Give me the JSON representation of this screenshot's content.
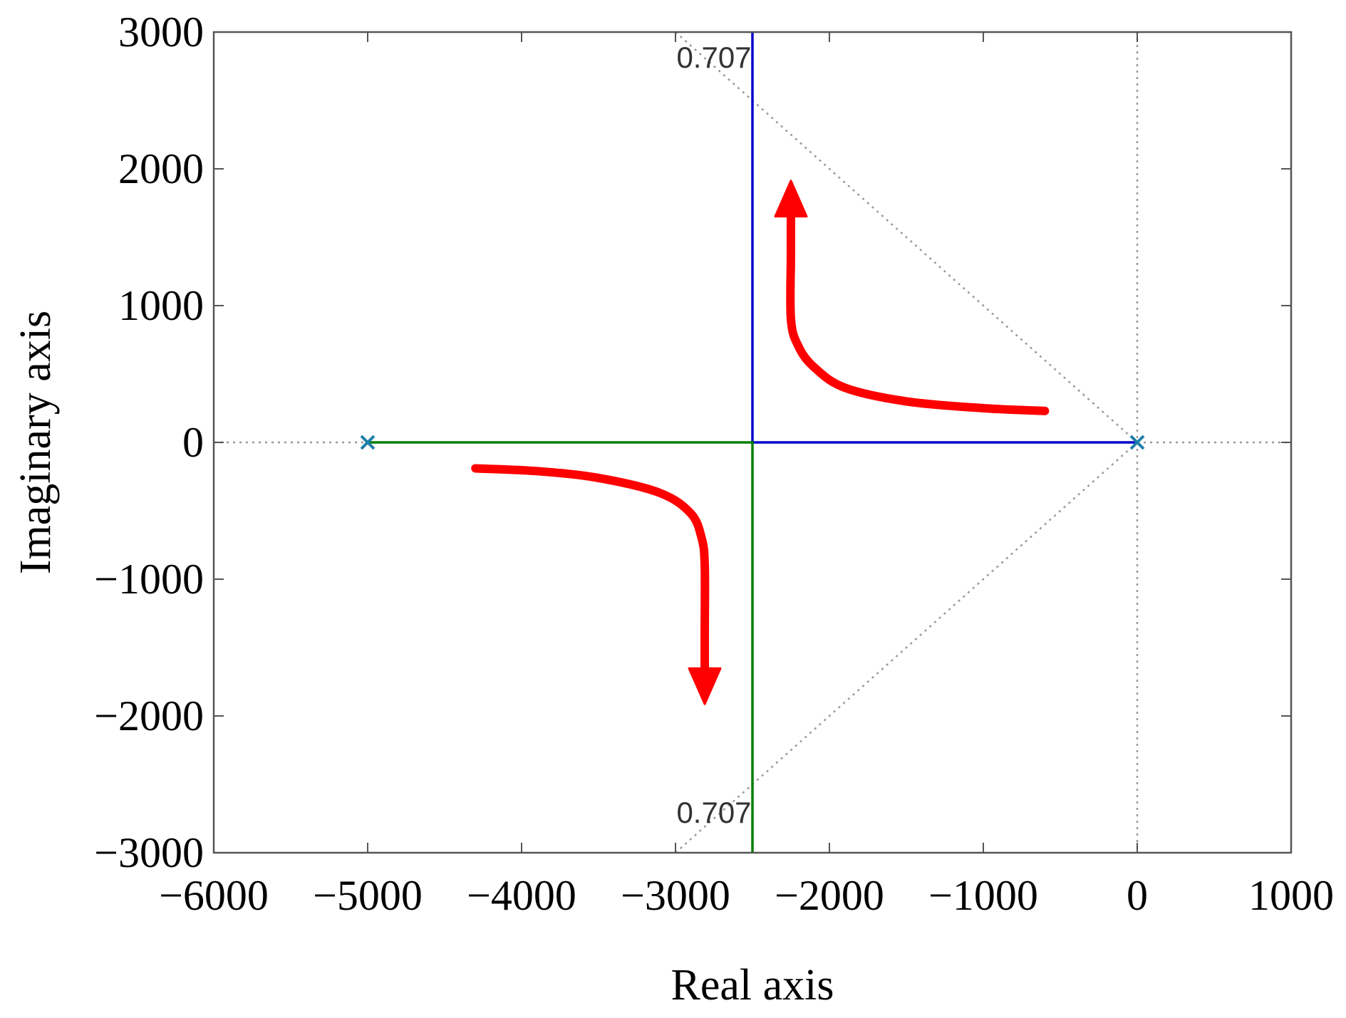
{
  "chart_data": {
    "type": "line",
    "xlabel": "Real axis",
    "ylabel": "Imaginary axis",
    "xlim": [
      -6000,
      1000
    ],
    "ylim": [
      -3000,
      3000
    ],
    "xticks": [
      -6000,
      -5000,
      -4000,
      -3000,
      -2000,
      -1000,
      0,
      1000
    ],
    "yticks": [
      -3000,
      -2000,
      -1000,
      0,
      1000,
      2000,
      3000
    ],
    "xtick_labels": [
      "−6000",
      "−5000",
      "−4000",
      "−3000",
      "−2000",
      "−1000",
      "0",
      "1000"
    ],
    "ytick_labels": [
      "−3000",
      "−2000",
      "−1000",
      "0",
      "1000",
      "2000",
      "3000"
    ],
    "grid": false,
    "poles": [
      {
        "x": -5000,
        "y": 0
      },
      {
        "x": 0,
        "y": 0
      }
    ],
    "series": [
      {
        "color": "#0000cc",
        "x": [
          0,
          -2500,
          -2500
        ],
        "y": [
          0,
          0,
          3000
        ]
      },
      {
        "color": "#008000",
        "x": [
          -5000,
          -2500,
          -2500
        ],
        "y": [
          0,
          0,
          -3000
        ]
      }
    ],
    "annotations": [
      {
        "text": "0.707",
        "x": -2750,
        "y": 2740
      },
      {
        "text": "0.707",
        "x": -2750,
        "y": -2780
      }
    ],
    "damping_lines": [
      {
        "x": [
          0,
          -3000
        ],
        "y": [
          0,
          3000
        ]
      },
      {
        "x": [
          0,
          -3000
        ],
        "y": [
          0,
          -3000
        ]
      }
    ],
    "arrows": [
      {
        "color": "#ff0000",
        "x": [
          -600,
          -1000,
          -1500,
          -1900,
          -2100,
          -2200,
          -2250,
          -2250,
          -2250
        ],
        "y": [
          230,
          250,
          300,
          400,
          550,
          700,
          900,
          1400,
          1850
        ]
      },
      {
        "color": "#ff0000",
        "x": [
          -4300,
          -3900,
          -3500,
          -3100,
          -2900,
          -2830,
          -2810,
          -2810,
          -2810
        ],
        "y": [
          -190,
          -210,
          -260,
          -370,
          -520,
          -700,
          -900,
          -1400,
          -1850
        ]
      }
    ],
    "colors": {
      "pole_marker": "#1f7fa8",
      "damping_line": "#999999",
      "frame": "#555555"
    }
  }
}
